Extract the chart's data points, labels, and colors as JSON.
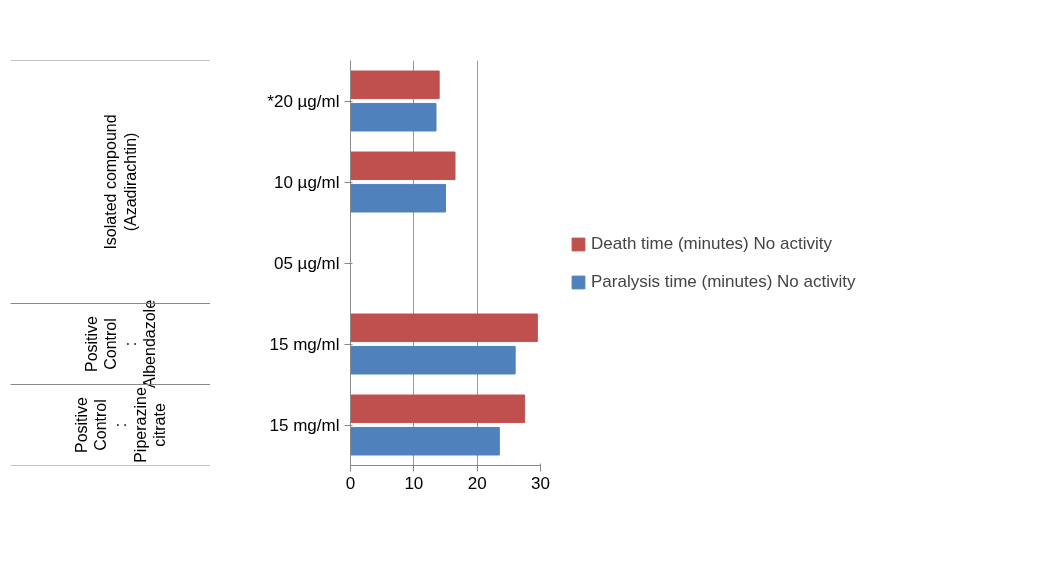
{
  "chart_data": {
    "type": "bar",
    "orientation": "horizontal",
    "categories": [
      "*20 µg/ml",
      "10 µg/ml",
      "05 µg/ml",
      "15 mg/ml",
      "15 mg/ml"
    ],
    "series": [
      {
        "name": "Death time (minutes) No activity",
        "color": "#c0504d",
        "values": [
          14,
          16.5,
          0,
          29.5,
          27.5
        ]
      },
      {
        "name": "Paralysis time (minutes) No activity",
        "color": "#4f81bd",
        "values": [
          13.5,
          15,
          0,
          26,
          23.5
        ]
      }
    ],
    "xlim": [
      0,
      30
    ],
    "xticks": [
      0,
      10,
      20,
      30
    ],
    "grid": "x",
    "legend": "right",
    "annotations": [
      "Isolated compound (Azadirachtin)",
      "Positive Control : Albendazole",
      "Positive Control : Piperazine citrate"
    ]
  }
}
